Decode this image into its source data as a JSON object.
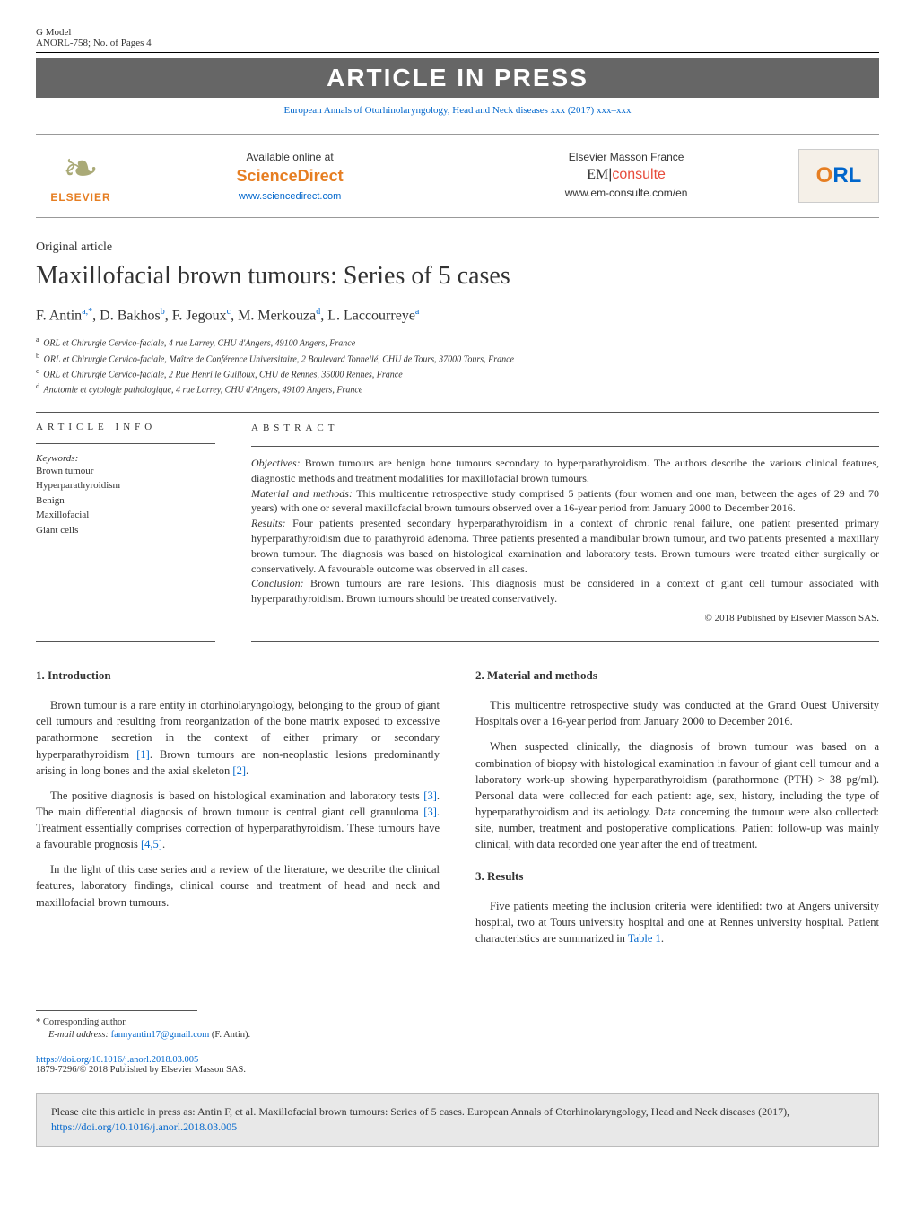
{
  "header": {
    "gmodel": "G Model",
    "gmodel_id": "ANORL-758;   No. of Pages 4",
    "banner": "ARTICLE IN PRESS",
    "journal_line": "European Annals of Otorhinolaryngology, Head and Neck diseases xxx (2017) xxx–xxx"
  },
  "panel": {
    "elsevier_name": "ELSEVIER",
    "available": "Available online at",
    "sd_brand": "ScienceDirect",
    "sd_url": "www.sciencedirect.com",
    "em_label": "Elsevier Masson France",
    "em_em": "EM",
    "em_consulte": "consulte",
    "em_url": "www.em-consulte.com/en",
    "orl_o": "O",
    "orl_rl": "RL"
  },
  "article": {
    "type": "Original article",
    "title": "Maxillofacial brown tumours: Series of 5 cases",
    "authors_html": "F. Antin<sup>a,</sup><sup class='asterisk'>*</sup>, D. Bakhos<sup>b</sup>, F. Jegoux<sup>c</sup>, M. Merkouza<sup>d</sup>, L. Laccourreye<sup>a</sup>",
    "affiliations": [
      {
        "sup": "a",
        "text": "ORL et Chirurgie Cervico-faciale, 4 rue Larrey, CHU d'Angers, 49100 Angers, France"
      },
      {
        "sup": "b",
        "text": "ORL et Chirurgie Cervico-faciale, Maître de Conférence Universitaire, 2 Boulevard Tonnellé, CHU de Tours, 37000 Tours, France"
      },
      {
        "sup": "c",
        "text": "ORL et Chirurgie Cervico-faciale, 2 Rue Henri le Guilloux, CHU de Rennes, 35000 Rennes, France"
      },
      {
        "sup": "d",
        "text": "Anatomie et cytologie pathologique, 4 rue Larrey, CHU d'Angers, 49100 Angers, France"
      }
    ]
  },
  "info": {
    "label": "article info",
    "kw_label": "Keywords:",
    "keywords": [
      "Brown tumour",
      "Hyperparathyroidism",
      "Benign",
      "Maxillofacial",
      "Giant cells"
    ]
  },
  "abstract": {
    "label": "abstract",
    "objectives_l": "Objectives:",
    "objectives": " Brown tumours are benign bone tumours secondary to hyperparathyroidism. The authors describe the various clinical features, diagnostic methods and treatment modalities for maxillofacial brown tumours.",
    "methods_l": "Material and methods:",
    "methods": " This multicentre retrospective study comprised 5 patients (four women and one man, between the ages of 29 and 70 years) with one or several maxillofacial brown tumours observed over a 16-year period from January 2000 to December 2016.",
    "results_l": "Results:",
    "results": " Four patients presented secondary hyperparathyroidism in a context of chronic renal failure, one patient presented primary hyperparathyroidism due to parathyroid adenoma. Three patients presented a mandibular brown tumour, and two patients presented a maxillary brown tumour. The diagnosis was based on histological examination and laboratory tests. Brown tumours were treated either surgically or conservatively. A favourable outcome was observed in all cases.",
    "conclusion_l": "Conclusion:",
    "conclusion": " Brown tumours are rare lesions. This diagnosis must be considered in a context of giant cell tumour associated with hyperparathyroidism. Brown tumours should be treated conservatively.",
    "copyright": "© 2018 Published by Elsevier Masson SAS."
  },
  "body": {
    "intro_h": "1. Introduction",
    "intro_p1a": "Brown tumour is a rare entity in otorhinolaryngology, belonging to the group of giant cell tumours and resulting from reorganization of the bone matrix exposed to excessive parathormone secretion in the context of either primary or secondary hyperparathyroidism ",
    "intro_ref1": "[1]",
    "intro_p1b": ". Brown tumours are non-neoplastic lesions predominantly arising in long bones and the axial skeleton ",
    "intro_ref2": "[2]",
    "intro_p1c": ".",
    "intro_p2a": "The positive diagnosis is based on histological examination and laboratory tests ",
    "intro_ref3a": "[3]",
    "intro_p2b": ". The main differential diagnosis of brown tumour is central giant cell granuloma ",
    "intro_ref3b": "[3]",
    "intro_p2c": ". Treatment essentially comprises correction of hyperparathyroidism. These tumours have a favourable prognosis ",
    "intro_ref45": "[4,5]",
    "intro_p2d": ".",
    "intro_p3": "In the light of this case series and a review of the literature, we describe the clinical features, laboratory findings, clinical course and treatment of head and neck and maxillofacial brown tumours.",
    "methods_h": "2. Material and methods",
    "methods_p1": "This multicentre retrospective study was conducted at the Grand Ouest University Hospitals over a 16-year period from January 2000 to December 2016.",
    "methods_p2": "When suspected clinically, the diagnosis of brown tumour was based on a combination of biopsy with histological examination in favour of giant cell tumour and a laboratory work-up showing hyperparathyroidism (parathormone (PTH) > 38 pg/ml). Personal data were collected for each patient: age, sex, history, including the type of hyperparathyroidism and its aetiology. Data concerning the tumour were also collected: site, number, treatment and postoperative complications. Patient follow-up was mainly clinical, with data recorded one year after the end of treatment.",
    "results_h": "3. Results",
    "results_p1a": "Five patients meeting the inclusion criteria were identified: two at Angers university hospital, two at Tours university hospital and one at Rennes university hospital. Patient characteristics are summarized in ",
    "results_table1": "Table 1",
    "results_p1b": "."
  },
  "footer": {
    "corresp_label": "* Corresponding author.",
    "email_label": "E-mail address: ",
    "email": "fannyantin17@gmail.com",
    "email_name": " (F. Antin).",
    "doi": "https://doi.org/10.1016/j.anorl.2018.03.005",
    "issn": "1879-7296/© 2018 Published by Elsevier Masson SAS.",
    "cite_text": "Please cite this article in press as: Antin F, et al. Maxillofacial brown tumours: Series of 5 cases. European Annals of Otorhinolaryngology, Head and Neck diseases (2017), ",
    "cite_doi": "https://doi.org/10.1016/j.anorl.2018.03.005"
  }
}
